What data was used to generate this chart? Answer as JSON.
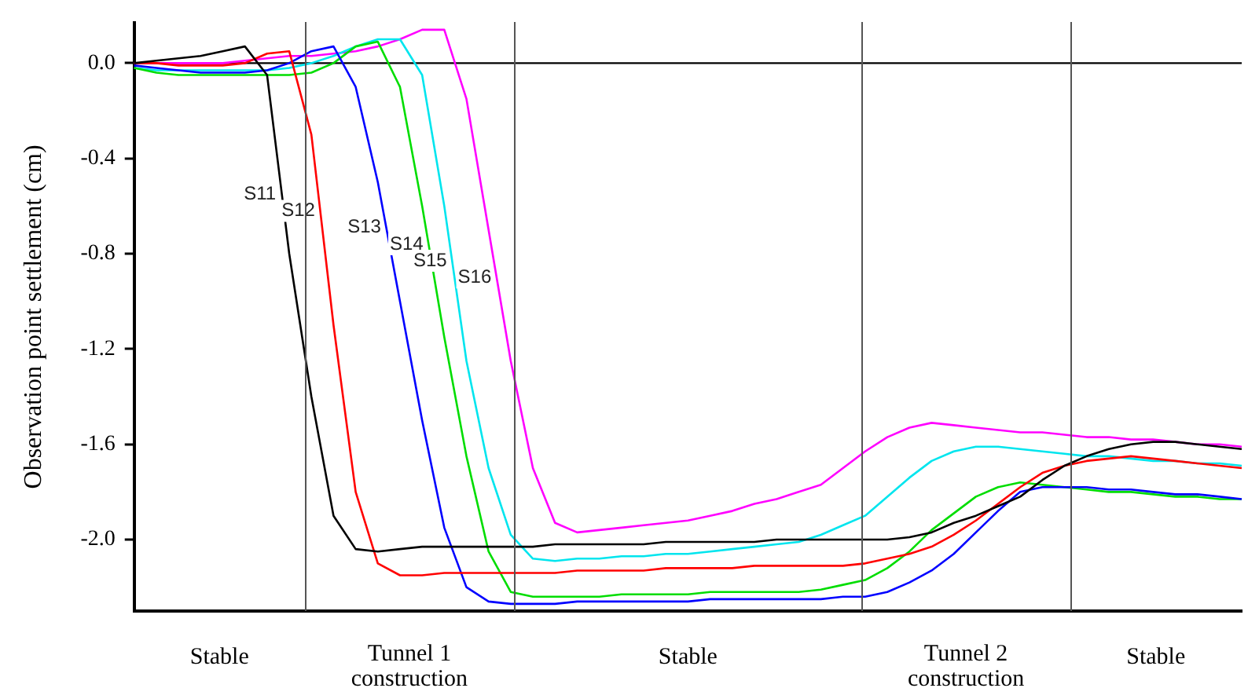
{
  "chart_data": {
    "type": "line",
    "ylabel": "Observation point settlement (cm)",
    "categories": [
      null,
      null,
      null,
      null,
      null,
      null,
      null,
      null,
      null,
      null,
      null,
      null,
      null,
      null,
      null,
      null,
      null,
      null,
      null,
      null,
      null,
      null,
      null,
      null,
      null,
      null,
      null,
      null,
      null,
      null,
      null,
      null,
      null,
      null,
      null,
      null,
      null,
      null,
      null,
      null,
      null,
      null,
      null,
      null,
      null,
      null,
      null,
      null,
      null,
      null,
      null
    ],
    "ylim": [
      -2.3,
      0.17
    ],
    "yticks": [
      {
        "value": 0,
        "label": "0.0"
      },
      {
        "value": -0.4,
        "label": "-0.4"
      },
      {
        "value": -0.8,
        "label": "-0.8"
      },
      {
        "value": -1.2,
        "label": "-1.2"
      },
      {
        "value": -1.6,
        "label": "-1.6"
      },
      {
        "value": -2,
        "label": "-2.0"
      }
    ],
    "tick_labels": "y",
    "grid": false,
    "legend": false,
    "marker": "none",
    "series": [
      {
        "name": "S11",
        "color": "#000000",
        "values": [
          0,
          0.01,
          0.02,
          0.03,
          0.05,
          0.07,
          -0.05,
          -0.8,
          -1.4,
          -1.9,
          -2.04,
          -2.05,
          -2.04,
          -2.03,
          -2.03,
          -2.03,
          -2.03,
          -2.03,
          -2.03,
          -2.02,
          -2.02,
          -2.02,
          -2.02,
          -2.02,
          -2.01,
          -2.01,
          -2.01,
          -2.01,
          -2.01,
          -2.0,
          -2.0,
          -2.0,
          -2.0,
          -2.0,
          -2.0,
          -1.99,
          -1.97,
          -1.93,
          -1.9,
          -1.86,
          -1.82,
          -1.75,
          -1.69,
          -1.65,
          -1.62,
          -1.6,
          -1.59,
          -1.59,
          -1.6,
          -1.61,
          -1.62
        ]
      },
      {
        "name": "S12",
        "color": "#ff0000",
        "values": [
          0,
          0,
          -0.01,
          -0.01,
          -0.01,
          0,
          0.04,
          0.05,
          -0.3,
          -1.1,
          -1.8,
          -2.1,
          -2.15,
          -2.15,
          -2.14,
          -2.14,
          -2.14,
          -2.14,
          -2.14,
          -2.14,
          -2.13,
          -2.13,
          -2.13,
          -2.13,
          -2.12,
          -2.12,
          -2.12,
          -2.12,
          -2.11,
          -2.11,
          -2.11,
          -2.11,
          -2.11,
          -2.1,
          -2.08,
          -2.06,
          -2.03,
          -1.98,
          -1.92,
          -1.85,
          -1.78,
          -1.72,
          -1.69,
          -1.67,
          -1.66,
          -1.65,
          -1.66,
          -1.67,
          -1.68,
          -1.69,
          -1.7
        ]
      },
      {
        "name": "S13",
        "color": "#0000ff",
        "values": [
          -0.01,
          -0.02,
          -0.03,
          -0.04,
          -0.04,
          -0.04,
          -0.03,
          0,
          0.05,
          0.07,
          -0.1,
          -0.5,
          -1.0,
          -1.5,
          -1.95,
          -2.2,
          -2.26,
          -2.27,
          -2.27,
          -2.27,
          -2.26,
          -2.26,
          -2.26,
          -2.26,
          -2.26,
          -2.26,
          -2.25,
          -2.25,
          -2.25,
          -2.25,
          -2.25,
          -2.25,
          -2.24,
          -2.24,
          -2.22,
          -2.18,
          -2.13,
          -2.06,
          -1.97,
          -1.88,
          -1.8,
          -1.78,
          -1.78,
          -1.78,
          -1.79,
          -1.79,
          -1.8,
          -1.81,
          -1.81,
          -1.82,
          -1.83
        ]
      },
      {
        "name": "S14",
        "color": "#00dd00",
        "values": [
          -0.02,
          -0.04,
          -0.05,
          -0.05,
          -0.05,
          -0.05,
          -0.05,
          -0.05,
          -0.04,
          0,
          0.07,
          0.09,
          -0.1,
          -0.6,
          -1.15,
          -1.65,
          -2.05,
          -2.22,
          -2.24,
          -2.24,
          -2.24,
          -2.24,
          -2.23,
          -2.23,
          -2.23,
          -2.23,
          -2.22,
          -2.22,
          -2.22,
          -2.22,
          -2.22,
          -2.21,
          -2.19,
          -2.17,
          -2.12,
          -2.05,
          -1.96,
          -1.89,
          -1.82,
          -1.78,
          -1.76,
          -1.77,
          -1.78,
          -1.79,
          -1.8,
          -1.8,
          -1.81,
          -1.82,
          -1.82,
          -1.83,
          -1.83
        ]
      },
      {
        "name": "S15",
        "color": "#00e5ee",
        "values": [
          -0.02,
          -0.03,
          -0.03,
          -0.03,
          -0.03,
          -0.03,
          -0.03,
          -0.02,
          0,
          0.03,
          0.07,
          0.1,
          0.1,
          -0.05,
          -0.6,
          -1.25,
          -1.7,
          -1.98,
          -2.08,
          -2.09,
          -2.08,
          -2.08,
          -2.07,
          -2.07,
          -2.06,
          -2.06,
          -2.05,
          -2.04,
          -2.03,
          -2.02,
          -2.01,
          -1.98,
          -1.94,
          -1.9,
          -1.82,
          -1.74,
          -1.67,
          -1.63,
          -1.61,
          -1.61,
          -1.62,
          -1.63,
          -1.64,
          -1.65,
          -1.65,
          -1.66,
          -1.67,
          -1.67,
          -1.68,
          -1.68,
          -1.69
        ]
      },
      {
        "name": "S16",
        "color": "#ff00ff",
        "values": [
          0,
          0,
          0,
          0,
          0,
          0.01,
          0.02,
          0.03,
          0.03,
          0.04,
          0.05,
          0.07,
          0.1,
          0.14,
          0.14,
          -0.15,
          -0.7,
          -1.25,
          -1.7,
          -1.93,
          -1.97,
          -1.96,
          -1.95,
          -1.94,
          -1.93,
          -1.92,
          -1.9,
          -1.88,
          -1.85,
          -1.83,
          -1.8,
          -1.77,
          -1.7,
          -1.63,
          -1.57,
          -1.53,
          -1.51,
          -1.52,
          -1.53,
          -1.54,
          -1.55,
          -1.55,
          -1.56,
          -1.57,
          -1.57,
          -1.58,
          -1.58,
          -1.59,
          -1.6,
          -1.6,
          -1.61
        ]
      }
    ],
    "ref_lines": [
      {
        "axis": "y",
        "value": 0,
        "color": "#000000"
      }
    ],
    "annotations": [
      "Stable",
      "Tunnel 1 construction",
      "Stable",
      "Tunnel 2 construction",
      "Stable"
    ]
  }
}
